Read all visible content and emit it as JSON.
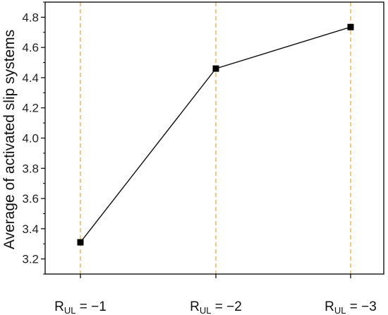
{
  "chart_data": {
    "type": "line",
    "categories": [
      {
        "main": "R",
        "sub": "UL",
        "rest": " = −1"
      },
      {
        "main": "R",
        "sub": "UL",
        "rest": " = −2"
      },
      {
        "main": "R",
        "sub": "UL",
        "rest": " = −3"
      }
    ],
    "values": [
      3.31,
      4.46,
      4.735
    ],
    "title": "",
    "xlabel": "",
    "ylabel": "Average of activated slip systems",
    "ylim": [
      3.1,
      4.9
    ],
    "yticks": [
      "3.2",
      "3.4",
      "3.6",
      "3.8",
      "4.0",
      "4.2",
      "4.4",
      "4.6",
      "4.8"
    ],
    "grid": "vertical dashed lines at categories",
    "colors": {
      "line": "#111111",
      "marker": "#000000",
      "guides": "#f0a030",
      "axis": "#000000"
    }
  }
}
